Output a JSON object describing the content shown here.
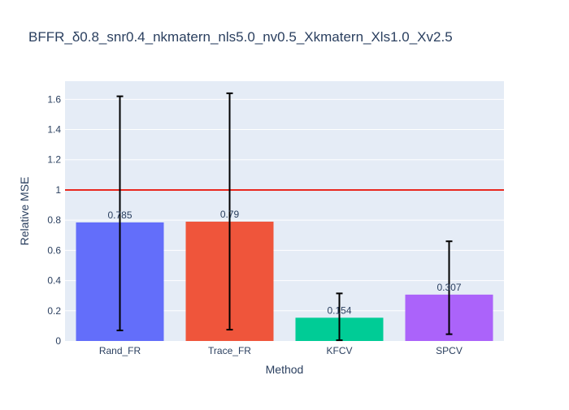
{
  "chart_data": {
    "type": "bar",
    "title": "BFFR_δ0.8_snr0.4_nkmatern_nls5.0_nv0.5_Xkmatern_Xls1.0_Xv2.5",
    "xlabel": "Method",
    "ylabel": "Relative MSE",
    "categories": [
      "Rand_FR",
      "Trace_FR",
      "KFCV",
      "SPCV"
    ],
    "values": [
      0.785,
      0.79,
      0.154,
      0.307
    ],
    "value_labels": [
      "0.785",
      "0.79",
      "0.154",
      "0.307"
    ],
    "error_low": [
      0.07,
      0.075,
      0.005,
      0.045
    ],
    "error_high": [
      1.62,
      1.64,
      0.315,
      0.66
    ],
    "colors": [
      "#636efa",
      "#ef553b",
      "#00cc96",
      "#ab63fa"
    ],
    "ylim": [
      0,
      1.72
    ],
    "yticks": [
      0,
      0.2,
      0.4,
      0.6,
      0.8,
      1,
      1.2,
      1.4,
      1.6
    ],
    "ytick_labels": [
      "0",
      "0.2",
      "0.4",
      "0.6",
      "0.8",
      "1",
      "1.2",
      "1.4",
      "1.6"
    ],
    "reference_line": {
      "y": 1,
      "color": "#e8281f"
    },
    "plot_background": "#e5ecf6",
    "grid": true,
    "legend": "none"
  }
}
